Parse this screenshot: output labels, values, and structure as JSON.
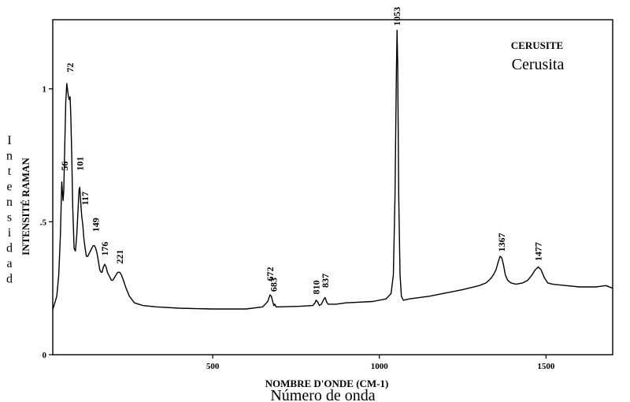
{
  "chart_data": {
    "type": "line",
    "title": "CERUSITE",
    "subtitle": "Cerusita",
    "xlabel": "NOMBRE D'ONDE (CM-1)",
    "xlabel_secondary": "Número de onda",
    "ylabel": "INTENSITÉ RAMAN",
    "ylabel_secondary": "Intensidad",
    "xlim": [
      20,
      1700
    ],
    "ylim": [
      0,
      1.26
    ],
    "x_ticks": [
      {
        "value": 500,
        "label": "500"
      },
      {
        "value": 1000,
        "label": "1000"
      },
      {
        "value": 1500,
        "label": "1500"
      }
    ],
    "y_ticks": [
      {
        "value": 0,
        "label": "0"
      },
      {
        "value": 0.5,
        "label": ".5"
      },
      {
        "value": 1,
        "label": "1"
      }
    ],
    "grid": false,
    "series": [
      {
        "x": [
          20,
          25,
          32,
          38,
          43,
          47,
          51,
          53,
          56,
          59,
          62,
          66,
          69,
          72,
          74,
          77,
          80,
          84,
          88,
          92,
          96,
          99,
          101,
          104,
          107,
          110,
          113,
          117,
          121,
          125,
          129,
          133,
          137,
          141,
          145,
          149,
          153,
          157,
          161,
          165,
          168,
          172,
          176,
          180,
          184,
          188,
          192,
          196,
          200,
          205,
          210,
          215,
          221,
          226,
          232,
          240,
          250,
          265,
          290,
          330,
          400,
          500,
          600,
          650,
          665,
          672,
          676,
          680,
          683,
          686,
          690,
          700,
          760,
          800,
          807,
          810,
          814,
          820,
          826,
          830,
          834,
          837,
          841,
          846,
          870,
          900,
          980,
          1020,
          1035,
          1042,
          1047,
          1051,
          1053,
          1055,
          1058,
          1062,
          1066,
          1072,
          1090,
          1150,
          1250,
          1300,
          1320,
          1333,
          1342,
          1350,
          1357,
          1362,
          1367,
          1372,
          1378,
          1385,
          1395,
          1410,
          1430,
          1445,
          1458,
          1468,
          1477,
          1485,
          1495,
          1505,
          1520,
          1560,
          1600,
          1650,
          1680,
          1700
        ],
        "y": [
          0.17,
          0.19,
          0.22,
          0.3,
          0.45,
          0.65,
          0.58,
          0.62,
          0.78,
          0.95,
          1.02,
          0.98,
          0.96,
          0.97,
          0.9,
          0.75,
          0.55,
          0.4,
          0.39,
          0.45,
          0.55,
          0.62,
          0.63,
          0.57,
          0.52,
          0.49,
          0.44,
          0.4,
          0.37,
          0.37,
          0.38,
          0.39,
          0.4,
          0.41,
          0.41,
          0.4,
          0.38,
          0.35,
          0.32,
          0.31,
          0.31,
          0.33,
          0.34,
          0.33,
          0.31,
          0.3,
          0.29,
          0.28,
          0.28,
          0.29,
          0.3,
          0.31,
          0.31,
          0.3,
          0.28,
          0.25,
          0.22,
          0.195,
          0.185,
          0.18,
          0.175,
          0.172,
          0.172,
          0.18,
          0.2,
          0.225,
          0.22,
          0.2,
          0.185,
          0.19,
          0.18,
          0.18,
          0.182,
          0.185,
          0.195,
          0.205,
          0.2,
          0.185,
          0.19,
          0.2,
          0.21,
          0.215,
          0.2,
          0.19,
          0.19,
          0.195,
          0.2,
          0.21,
          0.23,
          0.3,
          0.6,
          1.05,
          1.22,
          1.1,
          0.6,
          0.3,
          0.22,
          0.205,
          0.21,
          0.22,
          0.245,
          0.26,
          0.27,
          0.285,
          0.3,
          0.32,
          0.35,
          0.37,
          0.365,
          0.34,
          0.3,
          0.28,
          0.27,
          0.265,
          0.27,
          0.28,
          0.3,
          0.32,
          0.33,
          0.32,
          0.29,
          0.27,
          0.265,
          0.26,
          0.255,
          0.255,
          0.26,
          0.25
        ]
      }
    ],
    "peak_labels": [
      {
        "x": 56,
        "y": 0.68,
        "label": "56"
      },
      {
        "x": 72,
        "y": 1.05,
        "label": "72"
      },
      {
        "x": 101,
        "y": 0.68,
        "label": "101"
      },
      {
        "x": 117,
        "y": 0.55,
        "label": "117"
      },
      {
        "x": 149,
        "y": 0.45,
        "label": "149"
      },
      {
        "x": 176,
        "y": 0.36,
        "label": "176"
      },
      {
        "x": 221,
        "y": 0.33,
        "label": "221"
      },
      {
        "x": 672,
        "y": 0.265,
        "label": "672"
      },
      {
        "x": 683,
        "y": 0.225,
        "label": "683"
      },
      {
        "x": 810,
        "y": 0.215,
        "label": "810"
      },
      {
        "x": 837,
        "y": 0.24,
        "label": "837"
      },
      {
        "x": 1053,
        "y": 1.225,
        "label": "1053"
      },
      {
        "x": 1367,
        "y": 0.375,
        "label": "1367"
      },
      {
        "x": 1477,
        "y": 0.34,
        "label": "1477"
      }
    ]
  }
}
